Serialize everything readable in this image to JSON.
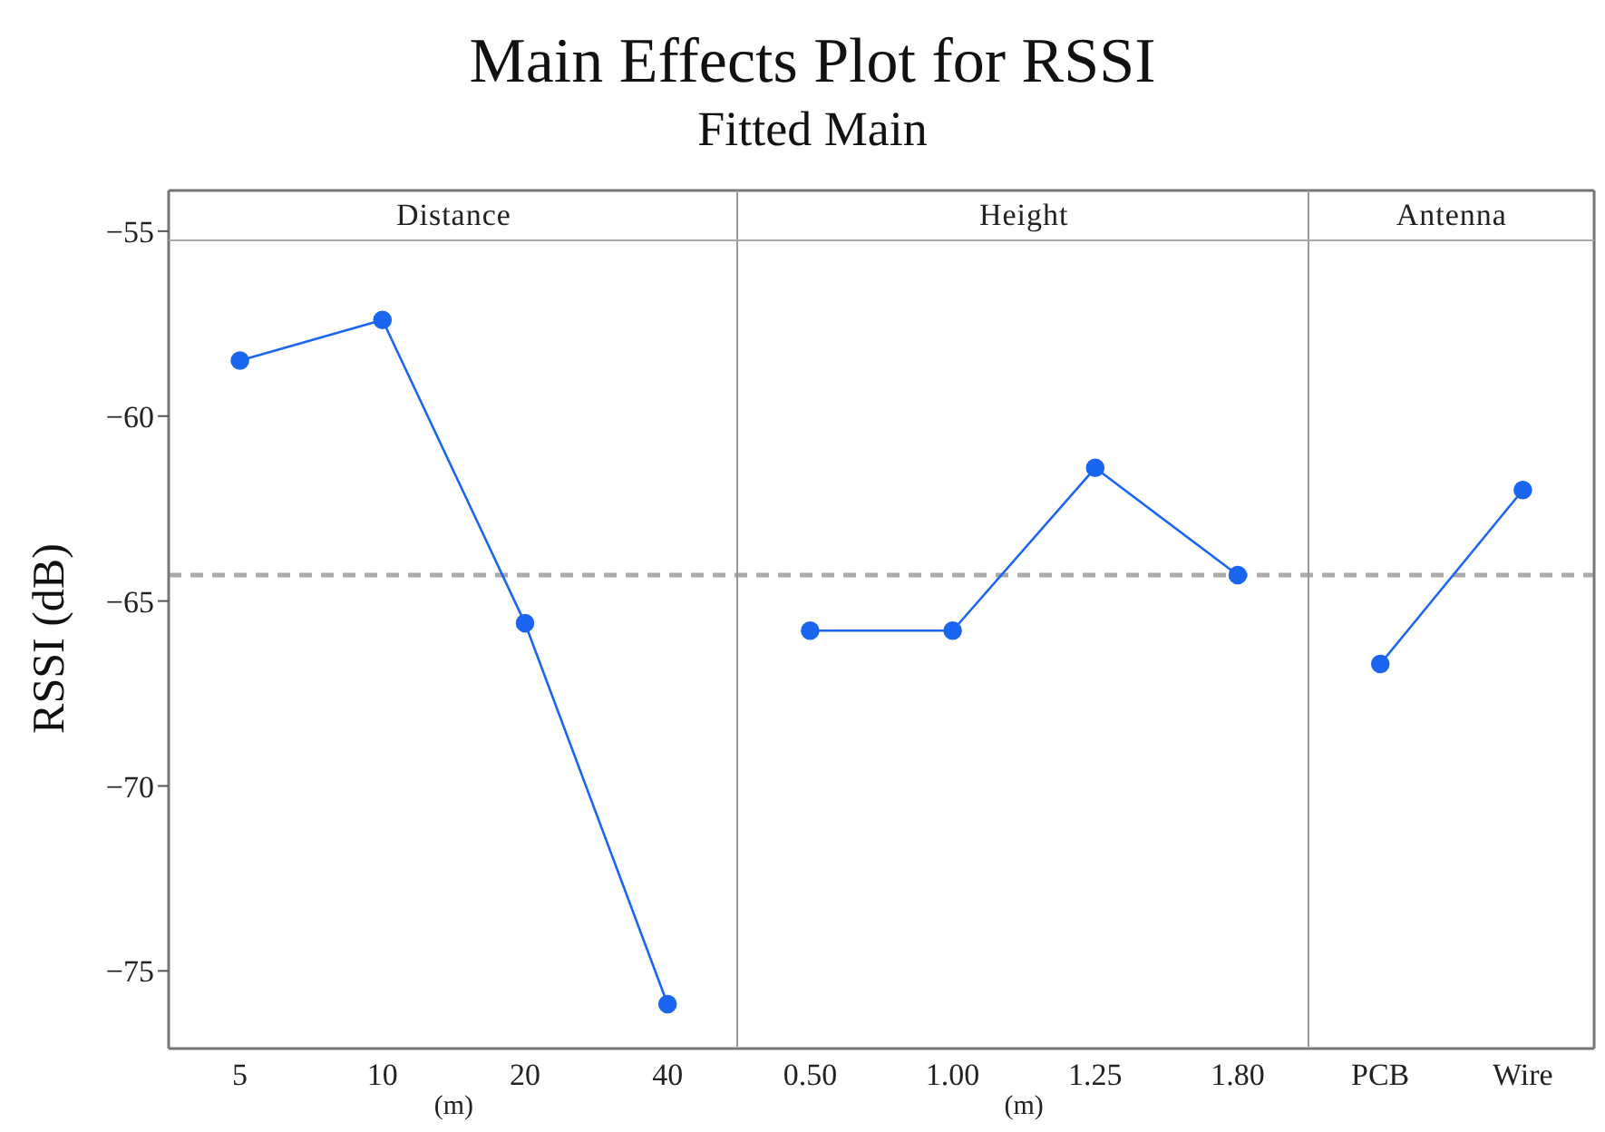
{
  "chart_data": {
    "type": "line",
    "title": "Main Effects Plot for RSSI",
    "subtitle": "Fitted Main",
    "ylabel": "RSSI (dB)",
    "xlabel": "(m)",
    "annotations": [
      "Distance",
      "Height",
      "Antenna",
      "(m)"
    ],
    "categories": [
      "5",
      "10",
      "20",
      "40",
      "0.50",
      "1.00",
      "1.25",
      "1.80",
      "PCB",
      "Wire"
    ],
    "series": [
      {
        "color": "#1a66f0",
        "values": [
          -58.5,
          -57.4,
          -65.6,
          -75.9,
          null,
          null,
          null,
          null,
          null,
          null
        ]
      },
      {
        "color": "#1a66f0",
        "values": [
          null,
          null,
          null,
          null,
          -65.8,
          -65.8,
          -61.4,
          -64.3,
          null,
          null
        ]
      },
      {
        "color": "#1a66f0",
        "values": [
          null,
          null,
          null,
          null,
          null,
          null,
          null,
          null,
          -66.7,
          -62.0
        ]
      }
    ],
    "ylim": [
      -77.1,
      -53.9
    ],
    "yticks": [
      -55,
      -60,
      -65,
      -70,
      -75
    ],
    "marker": "circle",
    "grid": false,
    "ref_lines": [
      {
        "axis": "y",
        "value": -64.3,
        "color": "#aaaaaa",
        "line_style": "dashed"
      }
    ]
  }
}
